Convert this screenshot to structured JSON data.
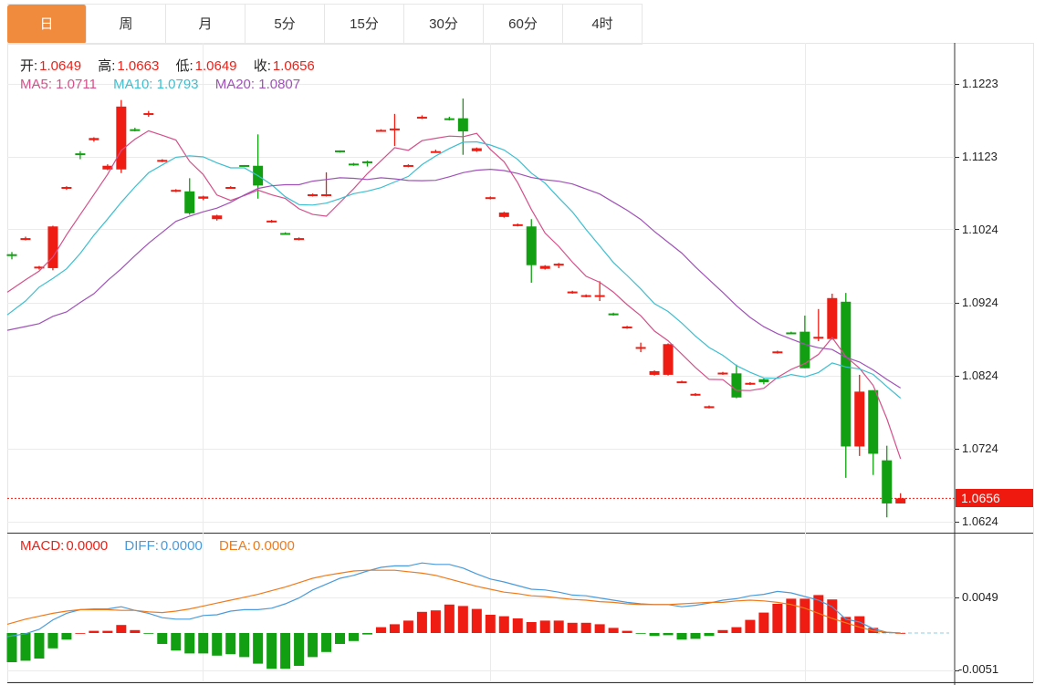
{
  "tabs": [
    {
      "label": "日",
      "active": true
    },
    {
      "label": "周",
      "active": false
    },
    {
      "label": "月",
      "active": false
    },
    {
      "label": "5分",
      "active": false
    },
    {
      "label": "15分",
      "active": false
    },
    {
      "label": "30分",
      "active": false
    },
    {
      "label": "60分",
      "active": false
    },
    {
      "label": "4时",
      "active": false
    }
  ],
  "ohlc_legend": {
    "open_label": "开:",
    "open": "1.0649",
    "high_label": "高:",
    "high": "1.0663",
    "low_label": "低:",
    "low": "1.0649",
    "close_label": "收:",
    "close": "1.0656"
  },
  "ma_legend": {
    "ma5": "MA5: 1.0711",
    "ma10": "MA10: 1.0793",
    "ma20": "MA20: 1.0807"
  },
  "macd_legend": {
    "macd_label": "MACD:",
    "macd": "0.0000",
    "diff_label": "DIFF:",
    "diff": "0.0000",
    "dea_label": "DEA:",
    "dea": "0.0000"
  },
  "colors": {
    "up": "#EE1C12",
    "down": "#12A012",
    "ma5": "#D4508A",
    "ma10": "#3CBFD0",
    "ma20": "#A052B8",
    "diff": "#4A9BDB",
    "dea": "#F07A1A",
    "active_tab": "#F08A3C"
  },
  "chart_data": [
    {
      "type": "candlestick",
      "ylim": [
        1.06,
        1.125
      ],
      "yticks": [
        "1.1223",
        "1.1123",
        "1.1024",
        "1.0924",
        "1.0824",
        "1.0724",
        "1.0624"
      ],
      "last_price": "1.0656",
      "grid": true,
      "ohlc": [
        [
          1.099,
          1.0993,
          1.0983,
          1.0988
        ],
        [
          1.101,
          1.1014,
          1.1009,
          1.1012
        ],
        [
          1.0971,
          1.0974,
          1.0969,
          1.0973
        ],
        [
          1.0971,
          1.1029,
          1.0968,
          1.1028
        ],
        [
          1.108,
          1.1083,
          1.1078,
          1.1082
        ],
        [
          1.1128,
          1.1131,
          1.112,
          1.1126
        ],
        [
          1.1146,
          1.115,
          1.1144,
          1.1149
        ],
        [
          1.1106,
          1.1113,
          1.1105,
          1.1111
        ],
        [
          1.1106,
          1.1201,
          1.1101,
          1.1192
        ],
        [
          1.1161,
          1.1163,
          1.1158,
          1.1159
        ],
        [
          1.1181,
          1.1186,
          1.1178,
          1.1183
        ],
        [
          1.1117,
          1.112,
          1.1116,
          1.1119
        ],
        [
          1.1076,
          1.1079,
          1.1075,
          1.1078
        ],
        [
          1.1076,
          1.1094,
          1.1044,
          1.1046
        ],
        [
          1.1066,
          1.107,
          1.1064,
          1.1069
        ],
        [
          1.1038,
          1.1044,
          1.1036,
          1.1043
        ],
        [
          1.1081,
          1.1083,
          1.108,
          1.1082
        ],
        [
          1.1112,
          1.1112,
          1.111,
          1.1111
        ],
        [
          1.1111,
          1.1154,
          1.1066,
          1.1084
        ],
        [
          1.1034,
          1.1037,
          1.1033,
          1.1036
        ],
        [
          1.1019,
          1.102,
          1.1017,
          1.1018
        ],
        [
          1.101,
          1.1013,
          1.1009,
          1.1012
        ],
        [
          1.107,
          1.1073,
          1.1069,
          1.1072
        ],
        [
          1.107,
          1.1102,
          1.1069,
          1.1072
        ],
        [
          1.1132,
          1.1132,
          1.1129,
          1.113
        ],
        [
          1.1114,
          1.1115,
          1.1111,
          1.1112
        ],
        [
          1.1117,
          1.1118,
          1.111,
          1.1115
        ],
        [
          1.1159,
          1.1161,
          1.1158,
          1.116
        ],
        [
          1.116,
          1.1182,
          1.1138,
          1.1162
        ],
        [
          1.111,
          1.1113,
          1.1109,
          1.1112
        ],
        [
          1.1176,
          1.118,
          1.1175,
          1.1178
        ],
        [
          1.113,
          1.1133,
          1.1129,
          1.1131
        ],
        [
          1.1176,
          1.1178,
          1.1173,
          1.1175
        ],
        [
          1.1176,
          1.1203,
          1.1126,
          1.1158
        ],
        [
          1.1131,
          1.1136,
          1.113,
          1.1135
        ],
        [
          1.1066,
          1.1069,
          1.1065,
          1.1068
        ],
        [
          1.1041,
          1.1048,
          1.104,
          1.1047
        ],
        [
          1.1029,
          1.1032,
          1.1028,
          1.1031
        ],
        [
          1.1028,
          1.1038,
          1.0951,
          1.0975
        ],
        [
          1.097,
          1.0975,
          1.0969,
          1.0974
        ],
        [
          1.0975,
          1.0978,
          1.0971,
          1.0977
        ],
        [
          1.0937,
          1.094,
          1.0936,
          1.0939
        ],
        [
          1.0932,
          1.0935,
          1.0931,
          1.0934
        ],
        [
          1.0932,
          1.0953,
          1.0926,
          1.0934
        ],
        [
          1.0909,
          1.091,
          1.0906,
          1.0907
        ],
        [
          1.0889,
          1.0892,
          1.0888,
          1.0891
        ],
        [
          1.0862,
          1.0869,
          1.0856,
          1.0863
        ],
        [
          1.0825,
          1.0831,
          1.0824,
          1.083
        ],
        [
          1.0825,
          1.0868,
          1.0824,
          1.0867
        ],
        [
          1.0815,
          1.0817,
          1.0814,
          1.0816
        ],
        [
          1.0797,
          1.08,
          1.0796,
          1.0799
        ],
        [
          1.078,
          1.0783,
          1.0779,
          1.0782
        ],
        [
          1.0826,
          1.0829,
          1.0825,
          1.0828
        ],
        [
          1.0827,
          1.0839,
          1.0793,
          1.0794
        ],
        [
          1.0812,
          1.0815,
          1.0811,
          1.0814
        ],
        [
          1.0819,
          1.082,
          1.0812,
          1.0815
        ],
        [
          1.0855,
          1.0858,
          1.0854,
          1.0857
        ],
        [
          1.0883,
          1.0884,
          1.0881,
          1.0882
        ],
        [
          1.0884,
          1.0906,
          1.0834,
          1.0834
        ],
        [
          1.0875,
          1.0915,
          1.0871,
          1.0877
        ],
        [
          1.0874,
          1.0936,
          1.0873,
          1.093
        ],
        [
          1.0925,
          1.0937,
          1.0684,
          1.0727
        ],
        [
          1.0727,
          1.0825,
          1.0714,
          1.0802
        ],
        [
          1.0804,
          1.0804,
          1.0688,
          1.0717
        ],
        [
          1.0708,
          1.0728,
          1.063,
          1.0649
        ],
        [
          1.0649,
          1.0663,
          1.0649,
          1.0656
        ]
      ],
      "ma_lines": [
        {
          "name": "MA5",
          "period": 5,
          "leading": [
            1.0938,
            1.0955,
            1.0967,
            1.0986
          ]
        },
        {
          "name": "MA10",
          "period": 10,
          "leading": [
            1.0907,
            1.0926,
            1.0945,
            1.0957,
            1.097,
            1.0991,
            1.1016,
            1.1038,
            1.1061
          ]
        },
        {
          "name": "MA20",
          "period": 20,
          "leading": [
            1.0886,
            1.0891,
            1.0895,
            1.0905,
            1.0911,
            1.0924,
            1.0936,
            1.0954,
            1.097,
            1.0988,
            1.1005,
            1.102,
            1.1035,
            1.1042,
            1.1048,
            1.1053,
            1.1061,
            1.1071,
            1.108
          ]
        }
      ]
    },
    {
      "type": "macd",
      "ylim": [
        -0.0055,
        0.011
      ],
      "yticks": [
        "0.0049",
        "-0.0051"
      ],
      "macd": [
        -0.004,
        -0.0038,
        -0.0035,
        -0.0021,
        -0.0009,
        0.0,
        0.0003,
        0.0003,
        0.0011,
        0.0004,
        -0.0001,
        -0.0015,
        -0.0024,
        -0.0028,
        -0.0028,
        -0.0031,
        -0.0029,
        -0.0033,
        -0.0042,
        -0.0049,
        -0.0049,
        -0.0045,
        -0.0033,
        -0.0026,
        -0.0015,
        -0.0011,
        -0.0002,
        0.0008,
        0.0012,
        0.0017,
        0.0029,
        0.0031,
        0.0039,
        0.0037,
        0.0033,
        0.0025,
        0.0023,
        0.002,
        0.0015,
        0.0017,
        0.0017,
        0.0014,
        0.0014,
        0.0012,
        0.0007,
        0.0003,
        -0.0001,
        -0.0004,
        -0.0003,
        -0.0009,
        -0.0008,
        -0.0004,
        0.0004,
        0.0008,
        0.0018,
        0.0028,
        0.004,
        0.0047,
        0.0047,
        0.0052,
        0.0046,
        0.0022,
        0.0023,
        0.0007,
        0.0001,
        0.0
      ],
      "diff": [
        -0.0005,
        -0.0001,
        0.0005,
        0.0018,
        0.0027,
        0.0032,
        0.0033,
        0.0033,
        0.0036,
        0.0031,
        0.0027,
        0.0021,
        0.0019,
        0.0019,
        0.0024,
        0.0025,
        0.003,
        0.0032,
        0.0032,
        0.0034,
        0.004,
        0.0048,
        0.0059,
        0.0067,
        0.0075,
        0.0079,
        0.0085,
        0.009,
        0.0092,
        0.0092,
        0.0096,
        0.0094,
        0.0094,
        0.0089,
        0.0081,
        0.0074,
        0.007,
        0.0065,
        0.006,
        0.0059,
        0.0056,
        0.0052,
        0.0051,
        0.0048,
        0.0045,
        0.0042,
        0.004,
        0.0039,
        0.0039,
        0.0036,
        0.0038,
        0.0041,
        0.0045,
        0.0047,
        0.0051,
        0.0053,
        0.0057,
        0.0055,
        0.005,
        0.0045,
        0.0036,
        0.0019,
        0.0015,
        0.0006,
        0.0001,
        0.0
      ],
      "dea": [
        0.0012,
        0.0019,
        0.0023,
        0.0027,
        0.003,
        0.0032,
        0.0032,
        0.0032,
        0.0031,
        0.0031,
        0.0029,
        0.0028,
        0.003,
        0.0033,
        0.0037,
        0.0041,
        0.0045,
        0.0049,
        0.0053,
        0.0058,
        0.0063,
        0.0069,
        0.0075,
        0.0079,
        0.0082,
        0.0085,
        0.0086,
        0.0086,
        0.0086,
        0.0084,
        0.0082,
        0.0079,
        0.0074,
        0.0069,
        0.0064,
        0.006,
        0.0056,
        0.0054,
        0.0051,
        0.005,
        0.0048,
        0.0046,
        0.0045,
        0.0043,
        0.0042,
        0.004,
        0.0039,
        0.0039,
        0.0039,
        0.004,
        0.0041,
        0.0042,
        0.0042,
        0.0044,
        0.0045,
        0.0044,
        0.0042,
        0.0039,
        0.0034,
        0.0027,
        0.002,
        0.0014,
        0.0008,
        0.0003,
        0.0001,
        0.0
      ]
    }
  ]
}
